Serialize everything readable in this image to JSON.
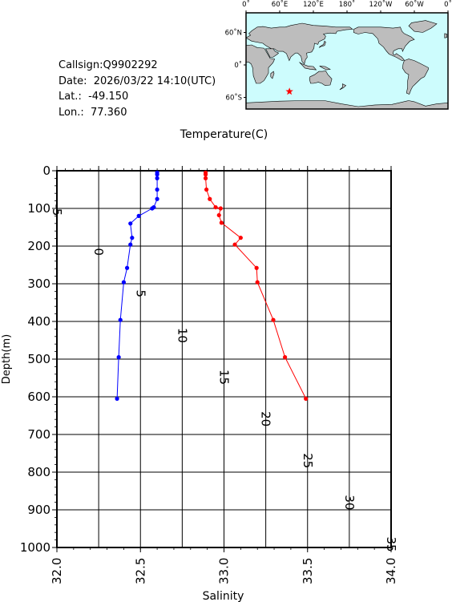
{
  "info": {
    "callsign": "Callsign:Q9902292",
    "date": "Date:  2026/03/22 14:10(UTC)",
    "lat": "Lat.:  -49.150",
    "lon": "Lon.:  77.360"
  },
  "map": {
    "lon_labels": [
      "0˚",
      "60˚E",
      "120˚E",
      "180˚",
      "120˚W",
      "60˚W",
      "0˚"
    ],
    "lat_labels": [
      "60˚N",
      "0˚",
      "60˚S"
    ],
    "marker": {
      "lat": -49.15,
      "lon": 77.36
    },
    "colors": {
      "ocean": "#cdfcfd",
      "land": "#bdbdbd",
      "marker": "#ff0000"
    }
  },
  "chart_data": {
    "type": "line",
    "ylabel": "Depth(m)",
    "ylim": [
      1000,
      0
    ],
    "yticks": [
      "0",
      "100",
      "200",
      "300",
      "400",
      "500",
      "600",
      "700",
      "800",
      "900",
      "1000"
    ],
    "top_axis": {
      "label": "Temperature(C)",
      "range": [
        -5,
        35
      ],
      "ticks": [
        "-5",
        "0",
        "5",
        "10",
        "15",
        "20",
        "25",
        "30",
        "35"
      ]
    },
    "bottom_axis": {
      "label": "Salinity",
      "range": [
        32.0,
        34.0
      ],
      "ticks": [
        "32.0",
        "32.5",
        "33.0",
        "33.5",
        "34.0"
      ]
    },
    "grid": true,
    "series": [
      {
        "variable": "salinity",
        "color": "#0000ff",
        "points": [
          {
            "x": 32.6,
            "y": 5
          },
          {
            "x": 32.6,
            "y": 10
          },
          {
            "x": 32.6,
            "y": 20
          },
          {
            "x": 32.6,
            "y": 50
          },
          {
            "x": 32.6,
            "y": 75
          },
          {
            "x": 32.58,
            "y": 97
          },
          {
            "x": 32.57,
            "y": 100
          },
          {
            "x": 32.49,
            "y": 120
          },
          {
            "x": 32.44,
            "y": 140
          },
          {
            "x": 32.45,
            "y": 178
          },
          {
            "x": 32.44,
            "y": 196
          },
          {
            "x": 32.42,
            "y": 258
          },
          {
            "x": 32.4,
            "y": 296
          },
          {
            "x": 32.38,
            "y": 396
          },
          {
            "x": 32.37,
            "y": 495
          },
          {
            "x": 32.36,
            "y": 605
          }
        ]
      },
      {
        "variable": "temperature",
        "color": "#ff0000",
        "points": [
          {
            "x": 12.8,
            "y": 5
          },
          {
            "x": 12.8,
            "y": 10
          },
          {
            "x": 12.8,
            "y": 20
          },
          {
            "x": 12.9,
            "y": 50
          },
          {
            "x": 13.3,
            "y": 75
          },
          {
            "x": 14.0,
            "y": 97
          },
          {
            "x": 14.6,
            "y": 100
          },
          {
            "x": 14.4,
            "y": 118
          },
          {
            "x": 14.7,
            "y": 138
          },
          {
            "x": 17.0,
            "y": 178
          },
          {
            "x": 16.3,
            "y": 196
          },
          {
            "x": 18.9,
            "y": 258
          },
          {
            "x": 19.0,
            "y": 296
          },
          {
            "x": 20.9,
            "y": 396
          },
          {
            "x": 22.3,
            "y": 495
          },
          {
            "x": 24.8,
            "y": 605
          }
        ]
      }
    ]
  }
}
